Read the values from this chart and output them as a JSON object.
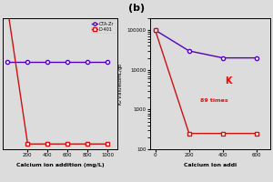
{
  "panel_a": {
    "x": [
      0,
      200,
      400,
      600,
      800,
      1000
    ],
    "cta_zr": [
      5000,
      5000,
      5000,
      5000,
      5000,
      5000
    ],
    "d401_x": [
      0,
      200,
      400,
      600,
      800,
      1000
    ],
    "d401": [
      8000,
      300,
      300,
      300,
      300,
      300
    ],
    "cta_zr_color": "#5500bb",
    "d401_color": "#cc1111",
    "xlabel": "Calcium ion addition (mg/L)",
    "legend_cta": "CTA-Zr",
    "legend_d401": "D-401",
    "ylim": [
      0,
      7500
    ],
    "xlim": [
      -50,
      1100
    ]
  },
  "panel_b": {
    "x": [
      0,
      200,
      400,
      600
    ],
    "cta_zr": [
      100000,
      30000,
      20000,
      20000
    ],
    "d401": [
      100000,
      250,
      250,
      250
    ],
    "cta_zr_color": "#5500bb",
    "d401_color": "#cc1111",
    "ylabel": "$K_d$ Values（mL/g）",
    "xlabel": "Calcium Ion addi",
    "annotation_k": "K",
    "annotation_times": "89 times",
    "ylim_log_min": 100,
    "ylim_log_max": 200000,
    "xlim": [
      -30,
      680
    ],
    "xticks": [
      0,
      200,
      400,
      600
    ]
  },
  "bg_color": "#dcdcdc",
  "label_b": "(b)"
}
